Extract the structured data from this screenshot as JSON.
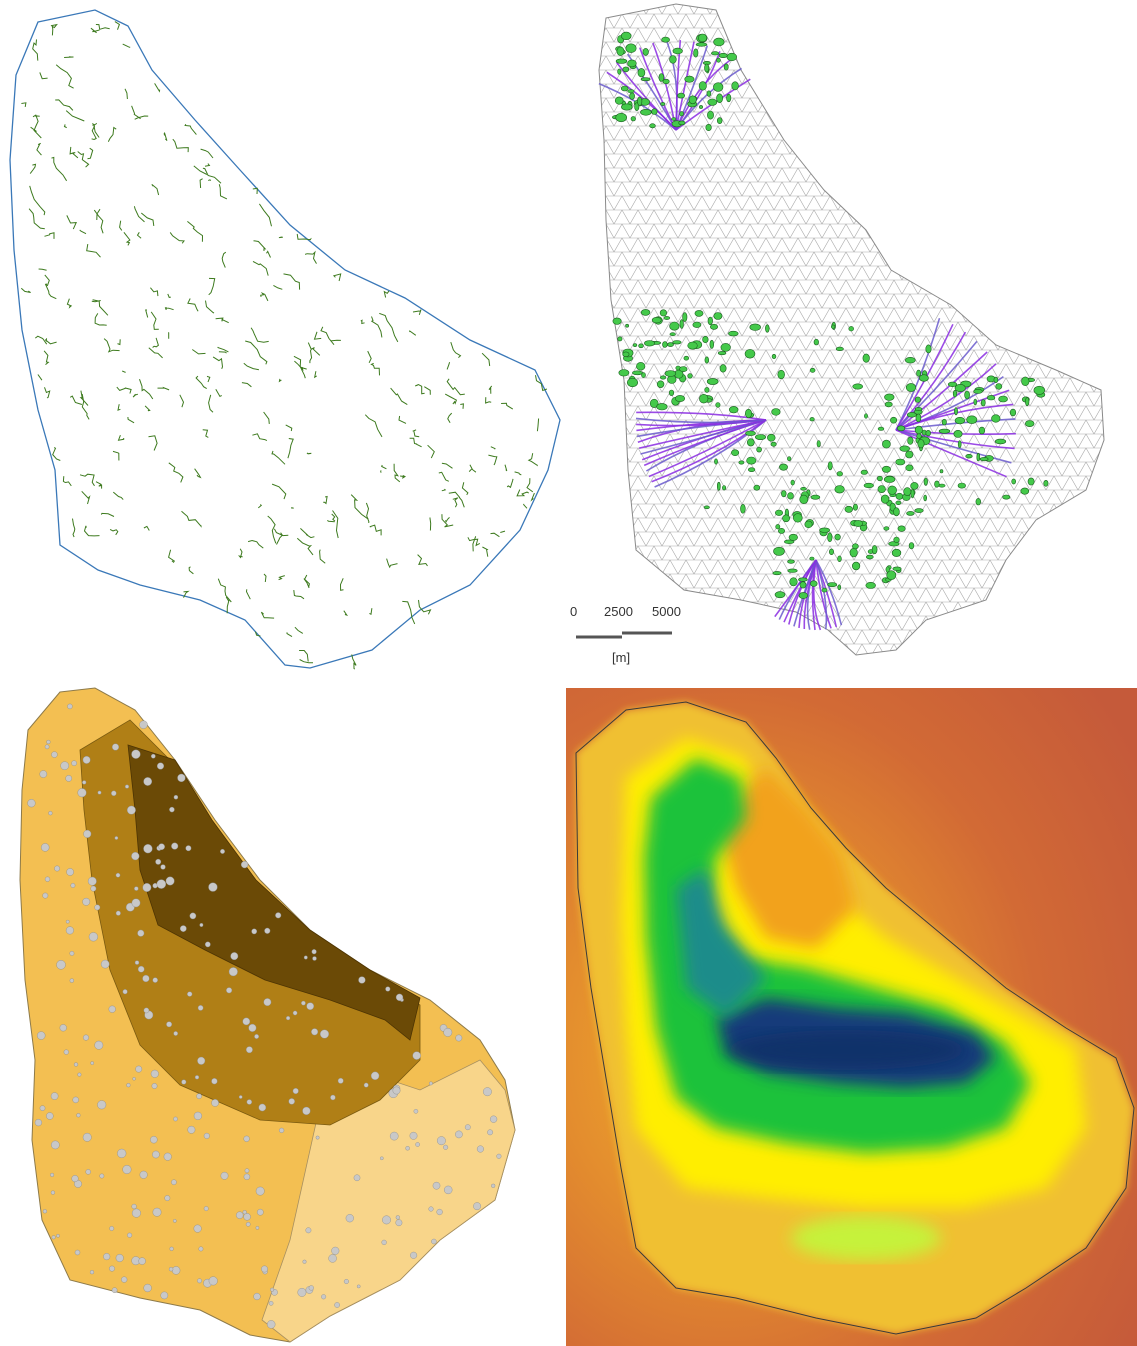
{
  "panels": [
    {
      "id": "drainage-map",
      "colors": {
        "coast": "#3a78b8",
        "streams": "#3d7a1e"
      }
    },
    {
      "id": "mesh-map",
      "colors": {
        "mesh": "#bdbdbd",
        "fill": "#efefef",
        "pathlines": "#8a2be2",
        "caves": "#44c94a"
      }
    },
    {
      "id": "geology-map",
      "colors": {
        "dark": "#6b4a06",
        "mid": "#b07f16",
        "light": "#f3bf52",
        "pale": "#f8d58a",
        "spots": "#c8c8c8"
      }
    },
    {
      "id": "elevation-raster",
      "colors": {
        "sea": "#c55a3a",
        "coast": "#f0b020",
        "low": "#ffee00",
        "mid": "#1fc23a",
        "high": "#123b7a"
      }
    }
  ],
  "scale_bar": {
    "ticks": [
      "0",
      "2500",
      "5000"
    ],
    "unit": "[m]"
  }
}
